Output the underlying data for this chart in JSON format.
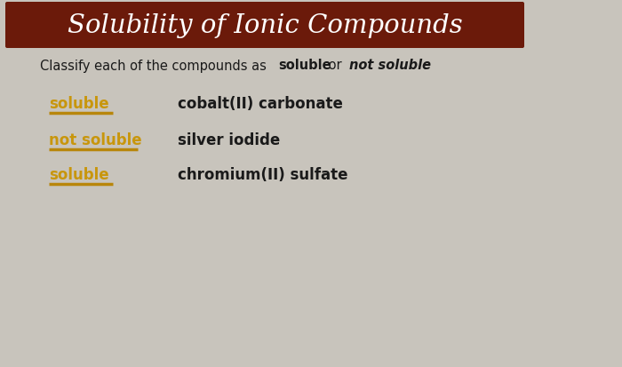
{
  "title": "Solubility of Ionic Compounds",
  "title_bg_color": "#6B1A0A",
  "title_text_color": "#FFFFFF",
  "bg_color": "#C8C4BC",
  "answers": [
    {
      "label": "soluble",
      "compound": "cobalt(II) carbonate"
    },
    {
      "label": "not soluble",
      "compound": "silver iodide"
    },
    {
      "label": "soluble",
      "compound": "chromium(II) sulfate"
    }
  ],
  "answer_color": "#C8960C",
  "compound_color": "#1A1A1A",
  "underline_color": "#B8860B",
  "fig_width": 7.0,
  "fig_height": 4.14,
  "dpi": 100
}
